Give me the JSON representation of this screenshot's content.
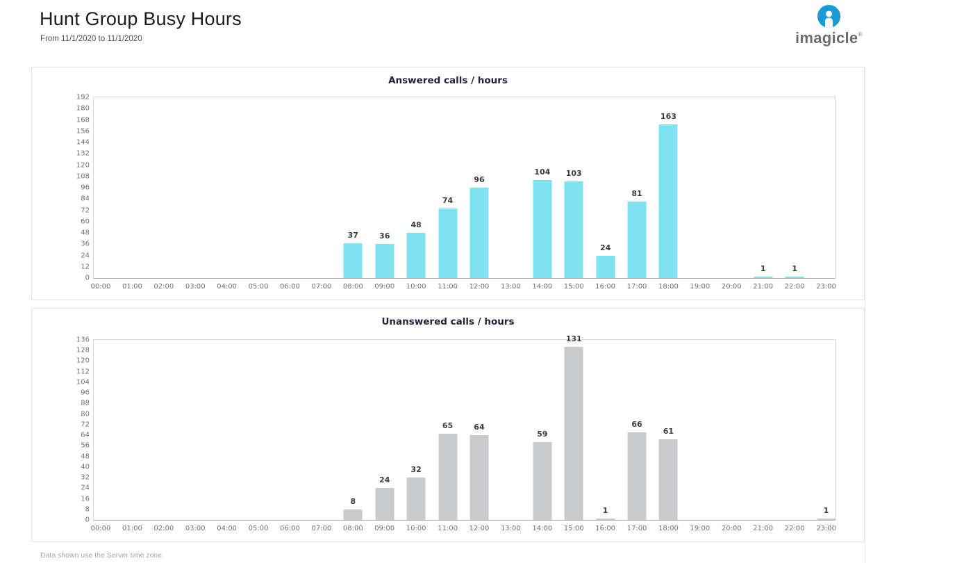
{
  "page": {
    "title": "Hunt Group Busy Hours",
    "subtitle": "From 11/1/2020 to 11/1/2020",
    "footer": "Data shown use the Server time zone.",
    "logo_text": "imagicle",
    "logo_reg": "®"
  },
  "colors": {
    "answered_bar": "#7fe2f2",
    "unanswered_bar": "#c9cacc",
    "logo_blue": "#1b9ad3",
    "logo_gray": "#6b6c6e"
  },
  "chart_data": [
    {
      "type": "bar",
      "title": "Answered calls / hours",
      "categories": [
        "00:00",
        "01:00",
        "02:00",
        "03:00",
        "04:00",
        "05:00",
        "06:00",
        "07:00",
        "08:00",
        "09:00",
        "10:00",
        "11:00",
        "12:00",
        "13:00",
        "14:00",
        "15:00",
        "16:00",
        "17:00",
        "18:00",
        "19:00",
        "20:00",
        "21:00",
        "22:00",
        "23:00"
      ],
      "values": [
        0,
        0,
        0,
        0,
        0,
        0,
        0,
        0,
        37,
        36,
        48,
        74,
        96,
        0,
        104,
        103,
        24,
        81,
        163,
        0,
        0,
        1,
        1,
        0
      ],
      "xlabel": "",
      "ylabel": "",
      "ylim": [
        0,
        192
      ],
      "ytick_step": 12,
      "bar_color": "#7fe2f2",
      "grid": false,
      "legend": "none"
    },
    {
      "type": "bar",
      "title": "Unanswered calls / hours",
      "categories": [
        "00:00",
        "01:00",
        "02:00",
        "03:00",
        "04:00",
        "05:00",
        "06:00",
        "07:00",
        "08:00",
        "09:00",
        "10:00",
        "11:00",
        "12:00",
        "13:00",
        "14:00",
        "15:00",
        "16:00",
        "17:00",
        "18:00",
        "19:00",
        "20:00",
        "21:00",
        "22:00",
        "23:00"
      ],
      "values": [
        0,
        0,
        0,
        0,
        0,
        0,
        0,
        0,
        8,
        24,
        32,
        65,
        64,
        0,
        59,
        131,
        1,
        66,
        61,
        0,
        0,
        0,
        0,
        1
      ],
      "xlabel": "",
      "ylabel": "",
      "ylim": [
        0,
        136
      ],
      "ytick_step": 8,
      "bar_color": "#c9cacc",
      "grid": false,
      "legend": "none"
    }
  ]
}
